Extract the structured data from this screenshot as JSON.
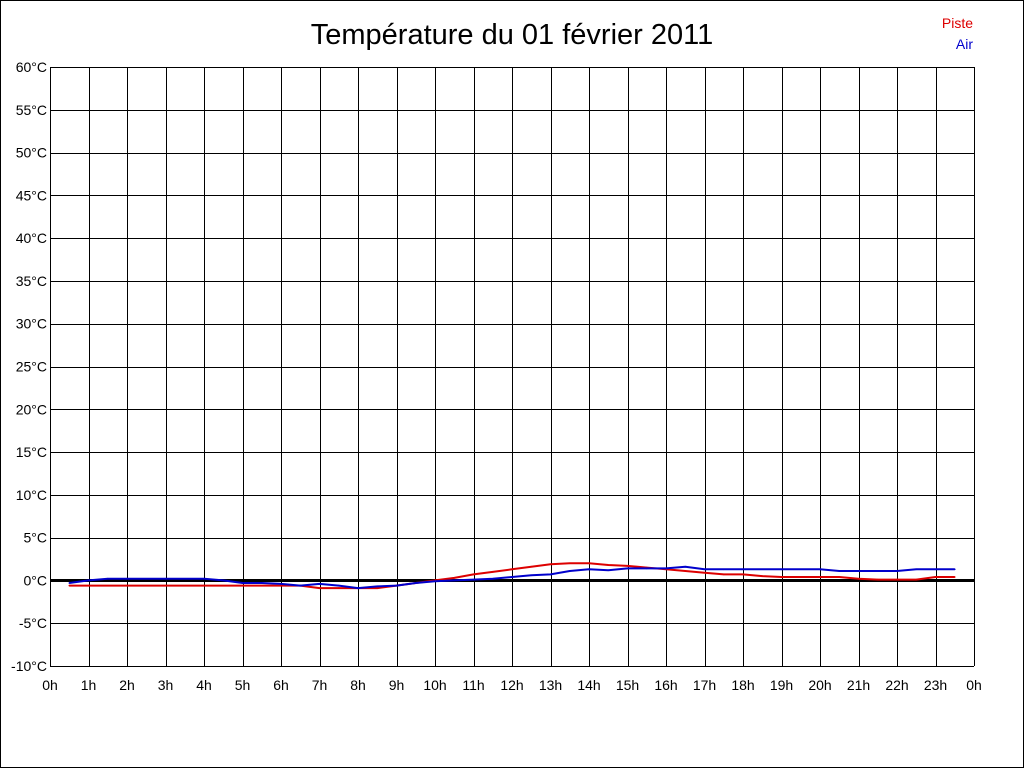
{
  "chart_data": {
    "type": "line",
    "title": "Température du 01 février 2011",
    "xlabel": "",
    "ylabel": "",
    "x_ticks": [
      "0h",
      "1h",
      "2h",
      "3h",
      "4h",
      "5h",
      "6h",
      "7h",
      "8h",
      "9h",
      "10h",
      "11h",
      "12h",
      "13h",
      "14h",
      "15h",
      "16h",
      "17h",
      "18h",
      "19h",
      "20h",
      "21h",
      "22h",
      "23h",
      "0h"
    ],
    "y_ticks": [
      "-10°C",
      "-5°C",
      "0°C",
      "5°C",
      "10°C",
      "15°C",
      "20°C",
      "25°C",
      "30°C",
      "35°C",
      "40°C",
      "45°C",
      "50°C",
      "55°C",
      "60°C"
    ],
    "xlim": [
      0,
      24
    ],
    "ylim": [
      -10,
      60
    ],
    "grid": true,
    "legend_position": "top-right",
    "series": [
      {
        "name": "Piste",
        "color": "#dd0000",
        "x": [
          0.5,
          1,
          2,
          3,
          4,
          5,
          6,
          6.5,
          7,
          7.5,
          8,
          8.5,
          9,
          9.5,
          10,
          10.5,
          11,
          11.5,
          12,
          12.5,
          13,
          13.5,
          14,
          14.5,
          15,
          15.5,
          16,
          16.5,
          17,
          17.5,
          18,
          18.5,
          19,
          19.5,
          20,
          20.5,
          21,
          21.5,
          22,
          22.5,
          23,
          23.5
        ],
        "y": [
          -0.6,
          -0.6,
          -0.6,
          -0.6,
          -0.6,
          -0.6,
          -0.6,
          -0.6,
          -0.9,
          -0.9,
          -0.9,
          -0.9,
          -0.6,
          -0.3,
          0,
          0.3,
          0.7,
          1,
          1.3,
          1.6,
          1.9,
          2,
          2,
          1.8,
          1.7,
          1.5,
          1.3,
          1.1,
          0.9,
          0.7,
          0.7,
          0.5,
          0.4,
          0.4,
          0.4,
          0.4,
          0.2,
          0.1,
          0.1,
          0.1,
          0.4,
          0.4
        ]
      },
      {
        "name": "Air",
        "color": "#0000cc",
        "x": [
          0.5,
          1,
          1.5,
          2,
          3,
          4,
          4.5,
          5,
          5.5,
          6,
          6.5,
          7,
          7.5,
          8,
          8.5,
          9,
          9.5,
          10,
          10.5,
          11,
          11.5,
          12,
          12.5,
          13,
          13.5,
          14,
          14.5,
          15,
          15.5,
          16,
          16.5,
          17,
          17.5,
          18,
          19,
          20,
          20.5,
          21,
          22,
          22.5,
          23,
          23.5
        ],
        "y": [
          -0.3,
          0,
          0.2,
          0.2,
          0.2,
          0.2,
          0,
          -0.3,
          -0.3,
          -0.4,
          -0.6,
          -0.4,
          -0.6,
          -0.9,
          -0.7,
          -0.6,
          -0.3,
          -0.1,
          0,
          0.1,
          0.2,
          0.4,
          0.6,
          0.7,
          1.1,
          1.3,
          1.2,
          1.4,
          1.4,
          1.4,
          1.6,
          1.3,
          1.3,
          1.3,
          1.3,
          1.3,
          1.1,
          1.1,
          1.1,
          1.3,
          1.3,
          1.3
        ]
      }
    ]
  }
}
